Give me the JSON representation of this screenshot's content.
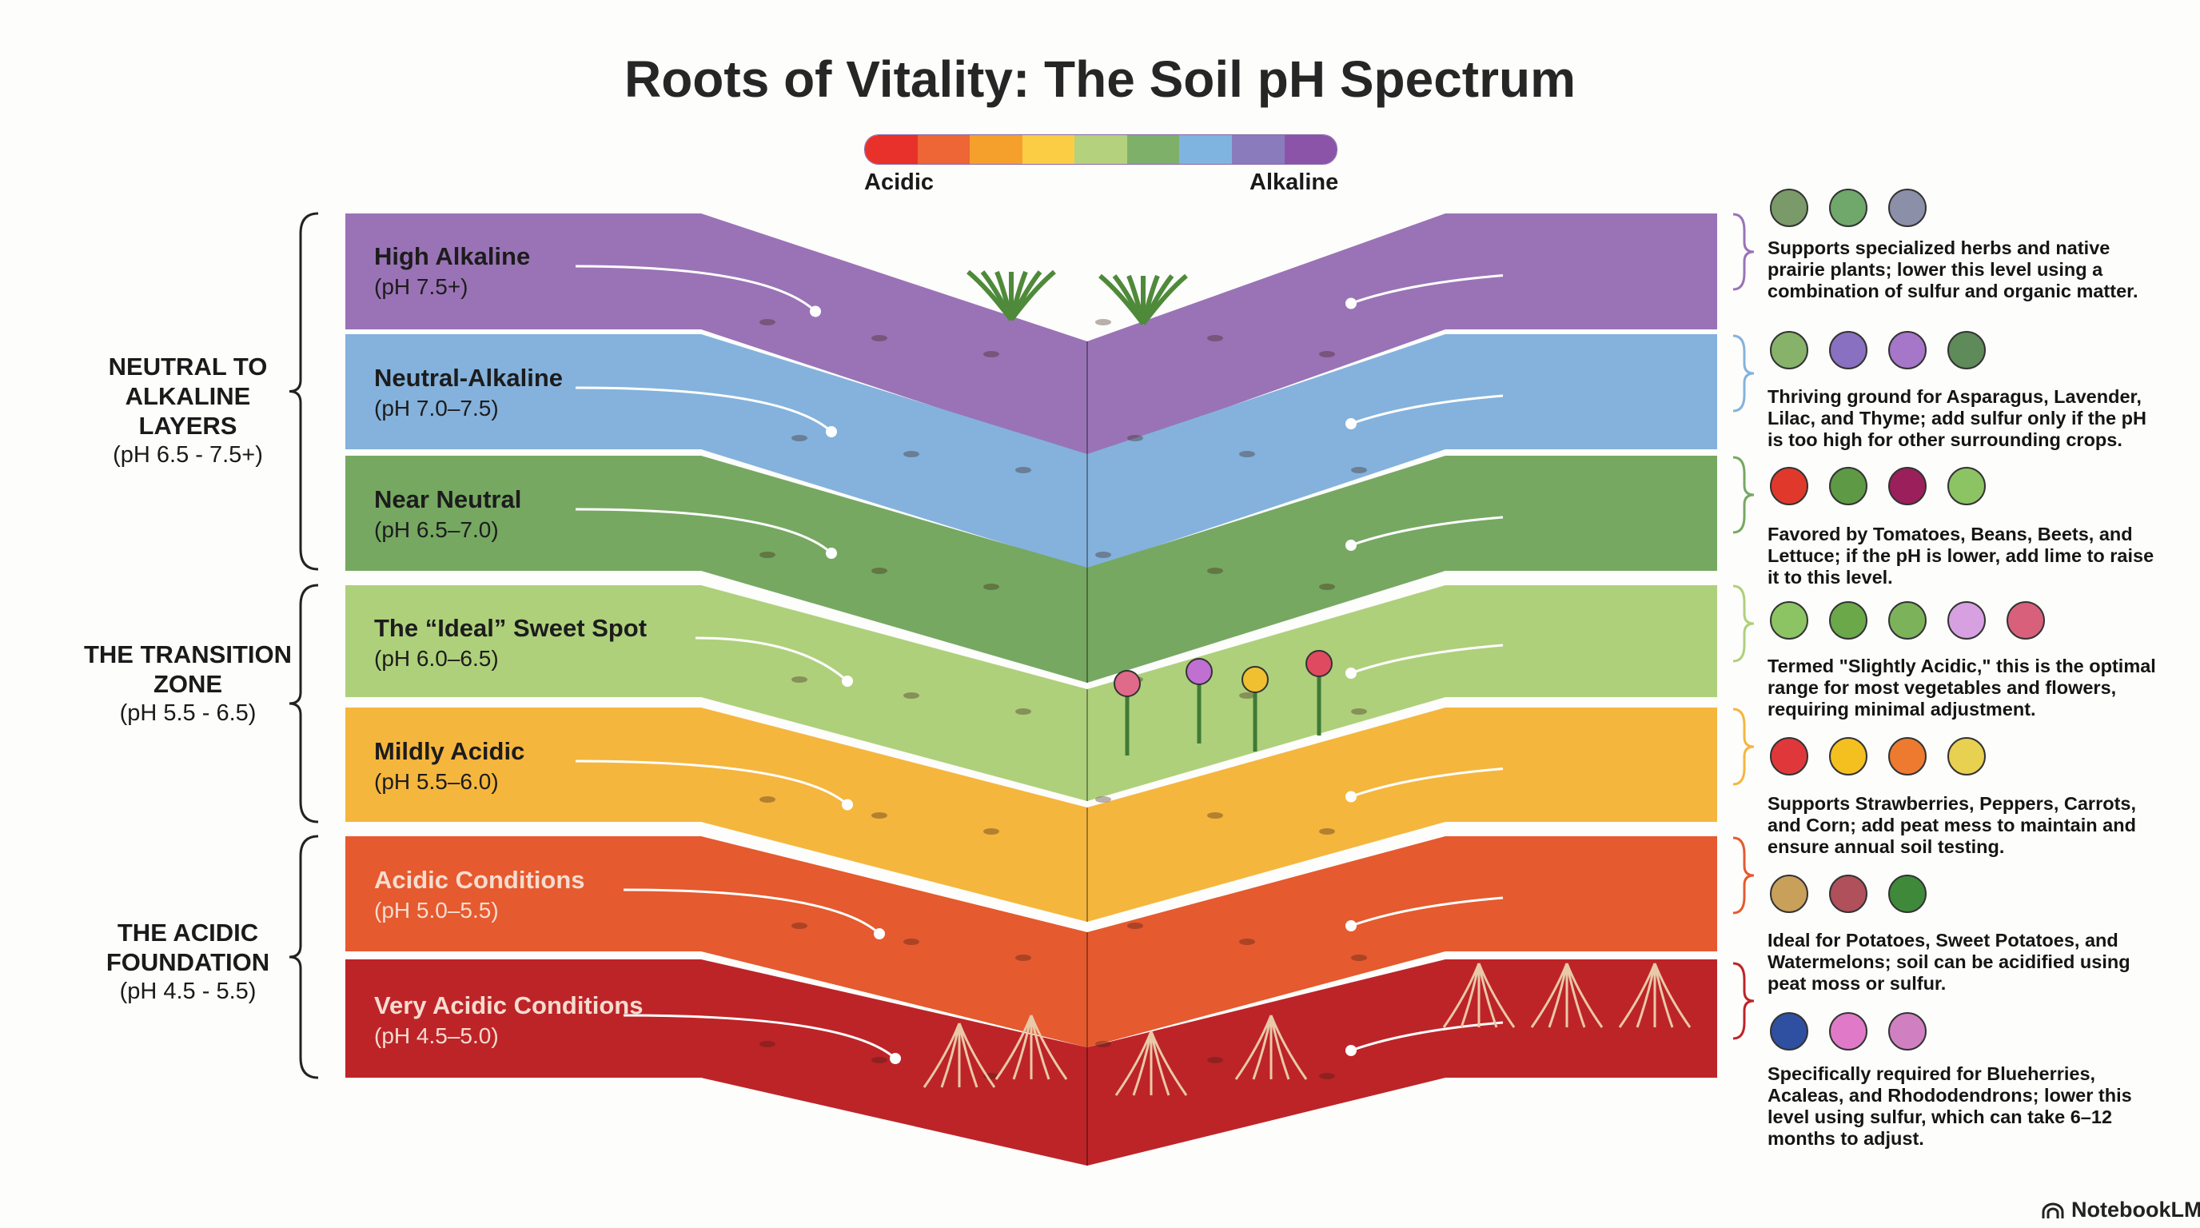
{
  "title": "Roots of Vitality: The Soil pH Spectrum",
  "scale": {
    "left_label": "Acidic",
    "right_label": "Alkaline",
    "colors": [
      "#e8312a",
      "#ee6536",
      "#f5a02c",
      "#fbcd45",
      "#b4d27e",
      "#7eb06a",
      "#80b4e0",
      "#8a7bbd",
      "#8b54a8"
    ]
  },
  "groups": [
    {
      "title": "NEUTRAL TO ALKALINE LAYERS",
      "ph": "(pH 6.5 - 7.5+)"
    },
    {
      "title": "THE TRANSITION ZONE",
      "ph": "(pH 5.5 - 6.5)"
    },
    {
      "title": "THE ACIDIC FOUNDATION",
      "ph": "(pH 4.5 - 5.5)"
    }
  ],
  "bands": [
    {
      "name": "High Alkaline",
      "ph": "(pH 7.5+)",
      "color": "#9a73b6",
      "text_color": "#1c1c1c",
      "note": "Supports specialized herbs and native prairie plants; lower this level using a combination of sulfur and organic matter.",
      "icons": [
        {
          "name": "grass-icon",
          "color": "#7a9a6a"
        },
        {
          "name": "herb-icon",
          "color": "#6fa86a"
        },
        {
          "name": "sage-icon",
          "color": "#8c8fa8"
        }
      ]
    },
    {
      "name": "Neutral-Alkaline",
      "ph": "(pH 7.0–7.5)",
      "color": "#84b2dc",
      "text_color": "#1c1c1c",
      "note": "Thriving ground for Asparagus, Lavender, Lilac, and Thyme; add sulfur only if the pH is too high for other surrounding crops.",
      "icons": [
        {
          "name": "asparagus-icon",
          "color": "#86b26a"
        },
        {
          "name": "lavender-icon",
          "color": "#8a70c0"
        },
        {
          "name": "lilac-icon",
          "color": "#a676c8"
        },
        {
          "name": "thyme-icon",
          "color": "#5f8a5a"
        }
      ]
    },
    {
      "name": "Near Neutral",
      "ph": "(pH 6.5–7.0)",
      "color": "#76a862",
      "text_color": "#1c1c1c",
      "note": "Favored by Tomatoes, Beans, Beets, and Lettuce; if the pH is lower, add lime to raise it to this level.",
      "icons": [
        {
          "name": "tomato-icon",
          "color": "#e0392b"
        },
        {
          "name": "bean-icon",
          "color": "#5e9a45"
        },
        {
          "name": "beet-icon",
          "color": "#9a1f5a"
        },
        {
          "name": "lettuce-icon",
          "color": "#8cc464"
        }
      ]
    },
    {
      "name": "The “Ideal” Sweet Spot",
      "ph": "(pH 6.0–6.5)",
      "color": "#aed07b",
      "text_color": "#1c1c1c",
      "note": "Termed \"Slightly Acidic,\" this is the optimal range for most vegetables and flowers, requiring minimal adjustment.",
      "icons": [
        {
          "name": "lettuce-icon",
          "color": "#8cc464"
        },
        {
          "name": "pea-pod-icon",
          "color": "#6aa84a"
        },
        {
          "name": "pea-icon",
          "color": "#7cb25a"
        },
        {
          "name": "flower-icon",
          "color": "#d7a0e0"
        },
        {
          "name": "flower-icon",
          "color": "#d8607a"
        }
      ]
    },
    {
      "name": "Mildly Acidic",
      "ph": "(pH 5.5–6.0)",
      "color": "#f5b63e",
      "text_color": "#1c1c1c",
      "note": "Supports Strawberries, Peppers, Carrots, and Corn; add peat mess to maintain and ensure annual soil testing.",
      "icons": [
        {
          "name": "strawberry-icon",
          "color": "#e0383a"
        },
        {
          "name": "pepper-icon",
          "color": "#f4c020"
        },
        {
          "name": "carrot-icon",
          "color": "#ee7a30"
        },
        {
          "name": "corn-icon",
          "color": "#e8d050"
        }
      ]
    },
    {
      "name": "Acidic Conditions",
      "ph": "(pH 5.0–5.5)",
      "color": "#e55a2e",
      "text_color": "#f6dcd0",
      "note": "Ideal for Potatoes, Sweet Potatoes, and Watermelons; soil can be acidified using peat moss or sulfur.",
      "icons": [
        {
          "name": "potato-icon",
          "color": "#c9a05a"
        },
        {
          "name": "sweet-potato-icon",
          "color": "#b0505a"
        },
        {
          "name": "watermelon-icon",
          "color": "#3f8a3a"
        }
      ]
    },
    {
      "name": "Very Acidic Conditions",
      "ph": "(pH 4.5–5.0)",
      "color": "#bd2428",
      "text_color": "#f6dcd0",
      "note": "Specifically required for Blueherries, Acaleas, and Rhododendrons; lower this level using sulfur, which can take 6–12 months to adjust.",
      "icons": [
        {
          "name": "blueberry-icon",
          "color": "#2f4fa0"
        },
        {
          "name": "azalea-icon",
          "color": "#e07ac8"
        },
        {
          "name": "rhododendron-icon",
          "color": "#d080c0"
        }
      ]
    }
  ],
  "brand": "NotebookLM"
}
